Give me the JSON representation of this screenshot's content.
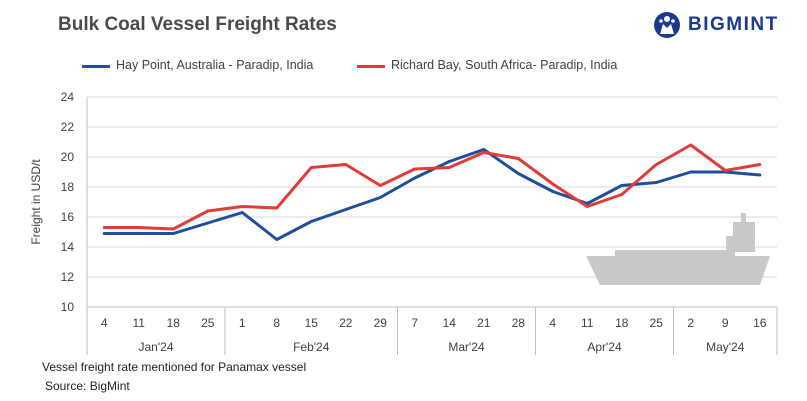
{
  "header": {
    "title": "Bulk Coal Vessel Freight Rates",
    "logo_text": "BIGMINT",
    "logo_icon": "bigmint-logo-icon"
  },
  "footer": {
    "note": "Vessel freight rate mentioned for Panamax  vessel",
    "source": "Source:  BigMint"
  },
  "chart_data": {
    "type": "line",
    "title": "Bulk Coal Vessel Freight Rates",
    "xlabel": "",
    "ylabel": "Freight  in USD/t",
    "ylim": [
      10,
      24
    ],
    "yticks": [
      10,
      12,
      14,
      16,
      18,
      20,
      22,
      24
    ],
    "grid": true,
    "legend_position": "top",
    "x": [
      "4",
      "11",
      "18",
      "25",
      "1",
      "8",
      "15",
      "22",
      "29",
      "7",
      "14",
      "21",
      "28",
      "4",
      "11",
      "18",
      "25",
      "2",
      "9",
      "16"
    ],
    "month_groups": [
      {
        "label": "Jan'24",
        "count": 4
      },
      {
        "label": "Feb'24",
        "count": 5
      },
      {
        "label": "Mar'24",
        "count": 4
      },
      {
        "label": "Apr'24",
        "count": 4
      },
      {
        "label": "May'24",
        "count": 3
      }
    ],
    "series": [
      {
        "name": "Hay Point, Australia - Paradip, India",
        "color": "#1f4e9b",
        "values": [
          14.9,
          14.9,
          14.9,
          15.6,
          16.3,
          14.5,
          15.7,
          16.5,
          17.3,
          18.6,
          19.7,
          20.5,
          18.9,
          17.7,
          16.9,
          18.1,
          18.3,
          19.0,
          19.0,
          18.8
        ]
      },
      {
        "name": "Richard Bay, South Africa- Paradip, India",
        "color": "#e03c3c",
        "values": [
          15.3,
          15.3,
          15.2,
          16.4,
          16.7,
          16.6,
          19.3,
          19.5,
          18.1,
          19.2,
          19.3,
          20.3,
          19.9,
          18.2,
          16.7,
          17.5,
          19.5,
          20.8,
          19.1,
          19.5
        ]
      }
    ]
  }
}
